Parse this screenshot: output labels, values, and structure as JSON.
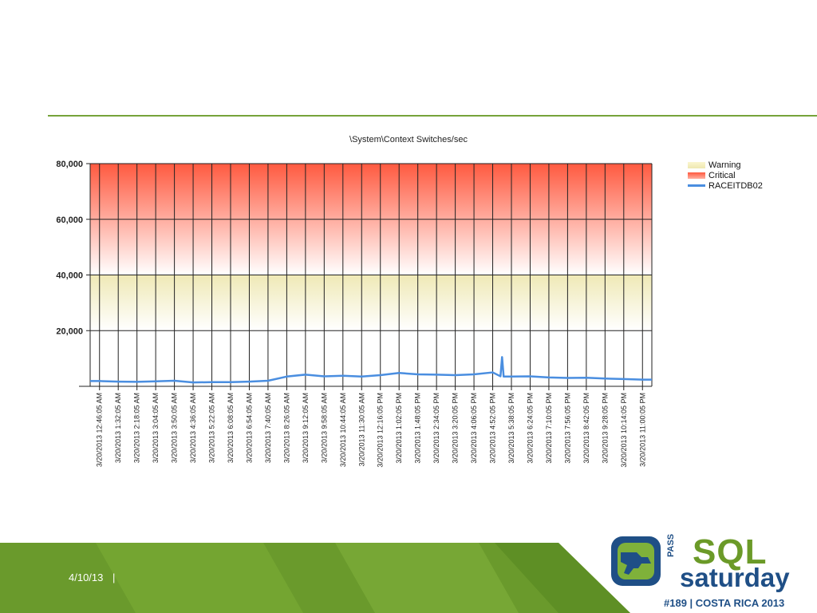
{
  "slide": {
    "date": "4/10/13",
    "separator": "|"
  },
  "logo": {
    "pass": "PASS",
    "sql": "SQL",
    "saturday": "saturday",
    "tagline": "#189 | COSTA RICA 2013"
  },
  "colors": {
    "accent_green": "#76a33a",
    "critical": "#ff5a40",
    "warning": "#f3eec0",
    "series": "#4a8ee0",
    "logo_blue": "#1f4f86"
  },
  "chart_data": {
    "type": "line",
    "title": "\\System\\Context Switches/sec",
    "xlabel": "",
    "ylabel": "",
    "ylim": [
      0,
      80000
    ],
    "yticks": [
      20000,
      40000,
      60000,
      80000
    ],
    "ytick_labels": [
      "20,000",
      "40,000",
      "60,000",
      "80,000"
    ],
    "grid": true,
    "legend_position": "right",
    "bands": [
      {
        "name": "Warning",
        "from": 20000,
        "to": 40000
      },
      {
        "name": "Critical",
        "from": 40000,
        "to": 80000
      }
    ],
    "categories": [
      "3/20/2013 12:46:05 AM",
      "3/20/2013 1:32:05 AM",
      "3/20/2013 2:18:05 AM",
      "3/20/2013 3:04:05 AM",
      "3/20/2013 3:50:05 AM",
      "3/20/2013 4:36:05 AM",
      "3/20/2013 5:22:05 AM",
      "3/20/2013 6:08:05 AM",
      "3/20/2013 6:54:05 AM",
      "3/20/2013 7:40:05 AM",
      "3/20/2013 8:26:05 AM",
      "3/20/2013 9:12:05 AM",
      "3/20/2013 9:58:05 AM",
      "3/20/2013 10:44:05 AM",
      "3/20/2013 11:30:05 AM",
      "3/20/2013 12:16:05 PM",
      "3/20/2013 1:02:05 PM",
      "3/20/2013 1:48:05 PM",
      "3/20/2013 2:34:05 PM",
      "3/20/2013 3:20:05 PM",
      "3/20/2013 4:06:05 PM",
      "3/20/2013 4:52:05 PM",
      "3/20/2013 5:38:05 PM",
      "3/20/2013 6:24:05 PM",
      "3/20/2013 7:10:05 PM",
      "3/20/2013 7:56:05 PM",
      "3/20/2013 8:42:05 PM",
      "3/20/2013 9:28:05 PM",
      "3/20/2013 10:14:05 PM",
      "3/20/2013 11:00:05 PM"
    ],
    "series": [
      {
        "name": "RACEITDB02",
        "values": [
          1900,
          1700,
          1600,
          1800,
          2000,
          1400,
          1500,
          1500,
          1700,
          2000,
          3500,
          4200,
          3600,
          3800,
          3500,
          4000,
          4800,
          4300,
          4200,
          4000,
          4300,
          5000,
          3500,
          3600,
          3200,
          3000,
          3100,
          2800,
          2600,
          2400
        ],
        "peak": {
          "at": "3/20/2013 5:15:05 PM",
          "value": 10500
        }
      }
    ]
  }
}
